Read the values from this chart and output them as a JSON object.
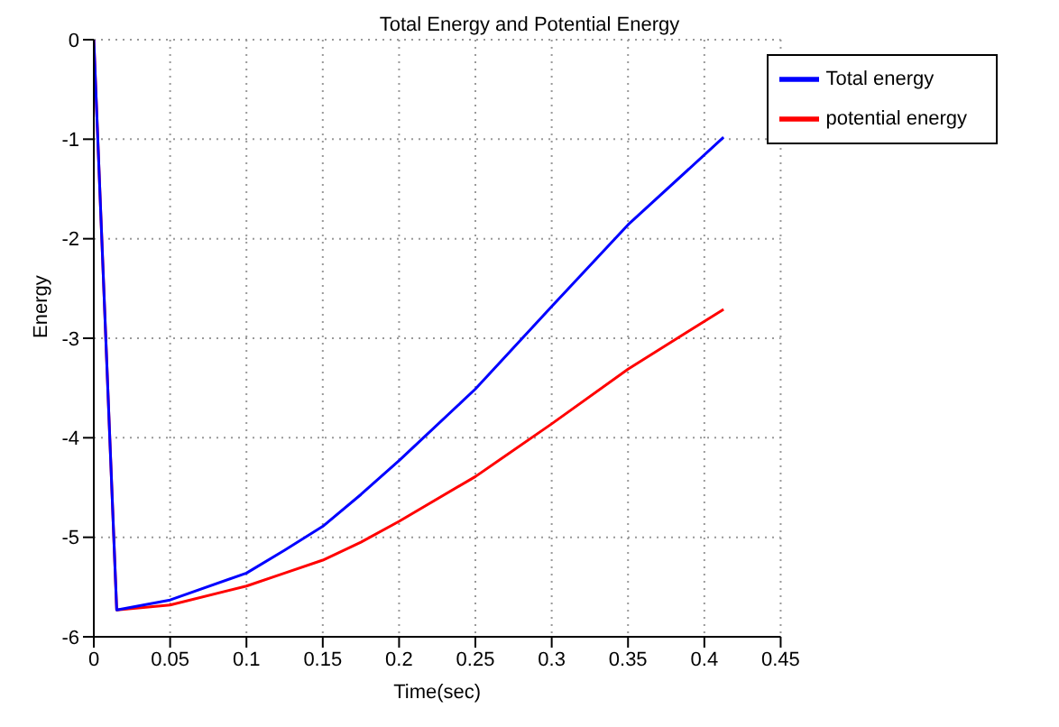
{
  "chart_data": {
    "type": "line",
    "title": "Total Energy and Potential Energy",
    "xlabel": "Time(sec)",
    "ylabel": "Energy",
    "x": [
      0,
      0.015,
      0.05,
      0.1,
      0.125,
      0.15,
      0.175,
      0.2,
      0.25,
      0.3,
      0.35,
      0.4126
    ],
    "series": [
      {
        "name": "potential energy",
        "color": "#ff0000",
        "values": [
          0,
          -5.73,
          -5.68,
          -5.49,
          -5.36,
          -5.23,
          -5.05,
          -4.84,
          -4.39,
          -3.86,
          -3.31,
          -2.71
        ]
      },
      {
        "name": "Total energy",
        "color": "#0000ff",
        "values": [
          0,
          -5.73,
          -5.63,
          -5.36,
          -5.13,
          -4.89,
          -4.57,
          -4.23,
          -3.51,
          -2.68,
          -1.86,
          -0.98
        ]
      }
    ],
    "xlim": [
      0,
      0.45
    ],
    "xticks": [
      0,
      0.05,
      0.1,
      0.15,
      0.2,
      0.25,
      0.3,
      0.35,
      0.4,
      0.45
    ],
    "ylim": [
      -6,
      0
    ],
    "yticks": [
      -6,
      -5,
      -4,
      -3,
      -2,
      -1,
      0
    ],
    "grid": true,
    "legend": "top right",
    "marker": "none",
    "line_style": "solid"
  }
}
